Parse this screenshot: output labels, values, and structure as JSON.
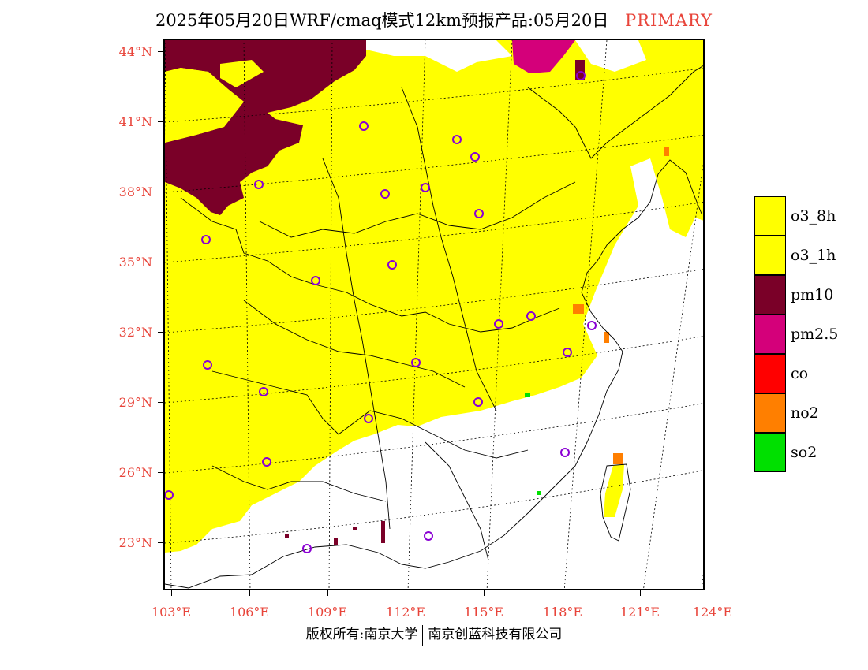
{
  "title": {
    "main": "2025年05月20日WRF/cmaq模式12km预报产品:05月20日",
    "tag": "PRIMARY"
  },
  "axes": {
    "lat_labels": [
      "44°N",
      "41°N",
      "38°N",
      "35°N",
      "32°N",
      "29°N",
      "26°N",
      "23°N"
    ],
    "lon_labels": [
      "103°E",
      "106°E",
      "109°E",
      "112°E",
      "115°E",
      "118°E",
      "121°E",
      "124°E"
    ]
  },
  "legend": {
    "items": [
      {
        "label": "o3_8h",
        "color": "#ffff00"
      },
      {
        "label": "o3_1h",
        "color": "#ffff00"
      },
      {
        "label": "pm10",
        "color": "#7a0028"
      },
      {
        "label": "pm2.5",
        "color": "#d4007a"
      },
      {
        "label": "co",
        "color": "#ff0000"
      },
      {
        "label": "no2",
        "color": "#ff7f00"
      },
      {
        "label": "so2",
        "color": "#00e000"
      }
    ]
  },
  "footer": {
    "left": "版权所有:南京大学",
    "right": "南京创蓝科技有限公司"
  },
  "colors": {
    "accent": "#e8443a",
    "o3": "#ffff00",
    "pm10": "#7a0028",
    "pm25": "#d4007a",
    "no2": "#ff7f00",
    "so2": "#00e000",
    "station_marker": "#8a00d4"
  }
}
